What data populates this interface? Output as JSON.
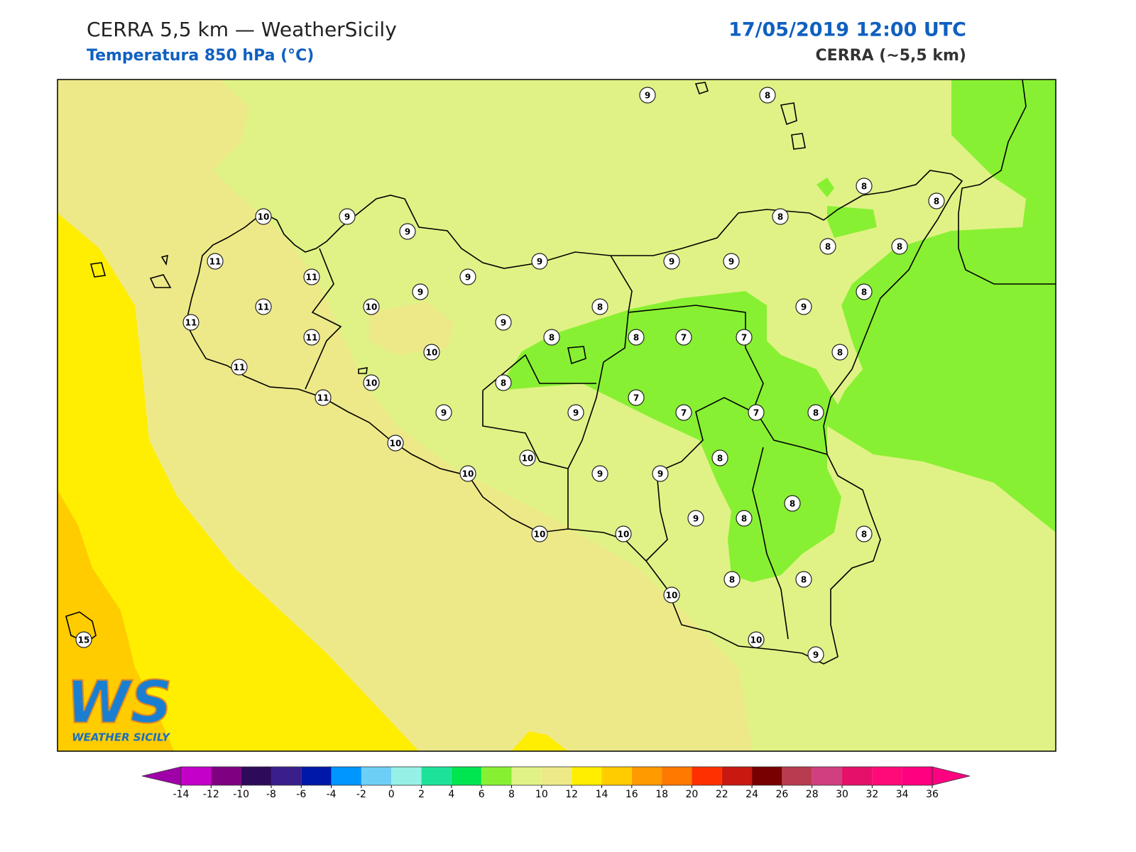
{
  "header": {
    "title": "CERRA 5,5 km — WeatherSicily",
    "subtitle": "Temperatura 850 hPa (°C)",
    "datetime": "17/05/2019 12:00 UTC",
    "model": "CERRA (~5,5 km)"
  },
  "stations": [
    9,
    8,
    8,
    8,
    10,
    9,
    9,
    8,
    8,
    8,
    11,
    9,
    9,
    9,
    11,
    9,
    9,
    8,
    11,
    10,
    8,
    9,
    11,
    9,
    11,
    8,
    8,
    7,
    7,
    10,
    8,
    11,
    10,
    8,
    11,
    7,
    9,
    9,
    7,
    7,
    8,
    10,
    10,
    8,
    10,
    9,
    9,
    8,
    9,
    8,
    10,
    10,
    8,
    8,
    8,
    10,
    15,
    10,
    9
  ],
  "logo": {
    "letters": "WS",
    "name": "WEATHER SICILY"
  },
  "colorbar": {
    "ticks": [
      -14,
      -12,
      -10,
      -8,
      -6,
      -4,
      -2,
      0,
      2,
      4,
      6,
      8,
      10,
      12,
      14,
      16,
      18,
      20,
      22,
      24,
      26,
      28,
      30,
      32,
      34,
      36
    ],
    "colors": [
      "#c400c8",
      "#7f0080",
      "#2e0a5a",
      "#3a1f8a",
      "#0018a8",
      "#0096ff",
      "#6ecff6",
      "#96f0e6",
      "#1de39a",
      "#00e650",
      "#88f032",
      "#e0f285",
      "#eee988",
      "#ffee00",
      "#ffcc00",
      "#ff9a00",
      "#ff7800",
      "#ff3000",
      "#c81810",
      "#780000",
      "#b83c50",
      "#d04080",
      "#e5106a",
      "#ff0a78",
      "#ff0080"
    ],
    "under": "#a000a8",
    "over": "#ff0080"
  }
}
